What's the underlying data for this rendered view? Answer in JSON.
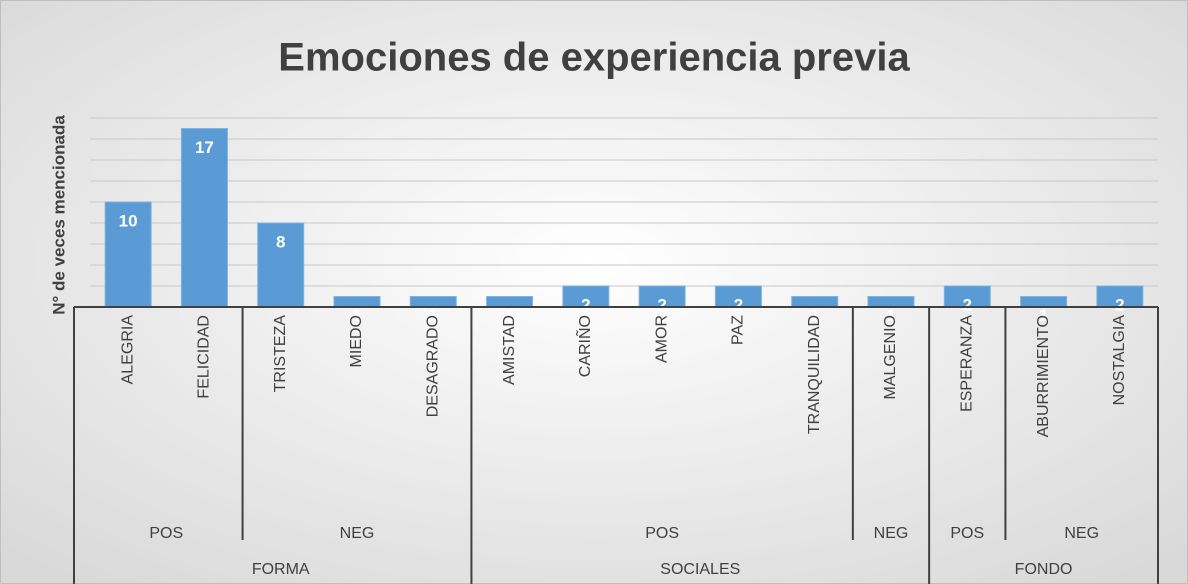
{
  "chart_data": {
    "type": "bar",
    "title": "Emociones de experiencia previa",
    "y_label": "N° de veces mencionada",
    "color": "#5b9bd5",
    "ylim": [
      0,
      18
    ],
    "yticks": [
      0,
      2,
      4,
      6,
      8,
      10,
      12,
      14,
      16,
      18
    ],
    "grid": true,
    "groups": [
      {
        "name": "FORMA",
        "subgroups": [
          {
            "name": "POS",
            "categories": [
              "ALEGRIA",
              "FELICIDAD"
            ],
            "values": [
              10,
              17
            ]
          },
          {
            "name": "NEG",
            "categories": [
              "TRISTEZA",
              "MIEDO",
              "DESAGRADO"
            ],
            "values": [
              8,
              1,
              1
            ]
          }
        ]
      },
      {
        "name": "SOCIALES",
        "subgroups": [
          {
            "name": "POS",
            "categories": [
              "AMISTAD",
              "CARIÑO",
              "AMOR",
              "PAZ",
              "TRANQUILIDAD"
            ],
            "values": [
              1,
              2,
              2,
              2,
              1
            ]
          },
          {
            "name": "NEG",
            "categories": [
              "MALGENIO"
            ],
            "values": [
              1
            ]
          }
        ]
      },
      {
        "name": "FONDO",
        "subgroups": [
          {
            "name": "POS",
            "categories": [
              "ESPERANZA"
            ],
            "values": [
              2
            ]
          },
          {
            "name": "NEG",
            "categories": [
              "ABURRIMIENTO",
              "NOSTALGIA"
            ],
            "values": [
              1,
              2
            ]
          }
        ]
      }
    ]
  }
}
